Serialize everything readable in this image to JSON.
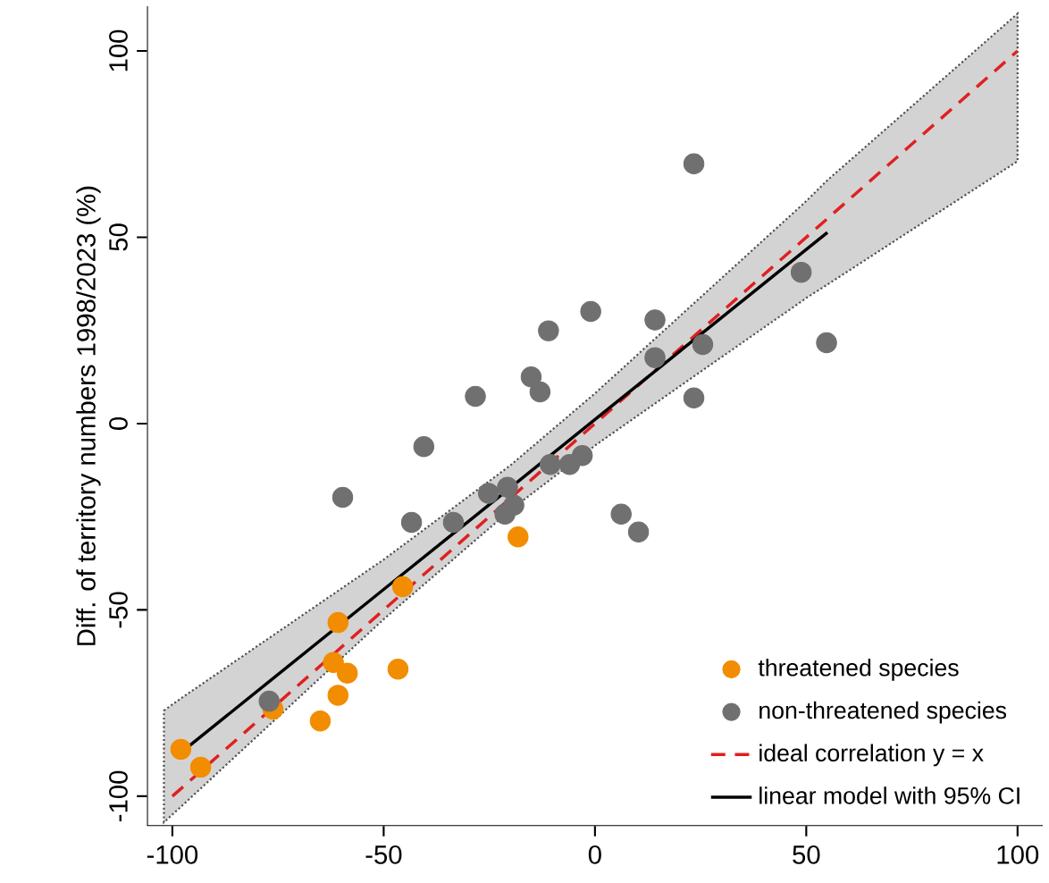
{
  "chart_data": {
    "type": "scatter",
    "ylabel": "Diff. of territory numbers 1998/2023 (%)",
    "xlim": [
      -106,
      106
    ],
    "ylim": [
      -108,
      112
    ],
    "xticks": [
      -100,
      -50,
      0,
      50,
      100
    ],
    "yticks": [
      -100,
      -50,
      0,
      50,
      100
    ],
    "legend": "bottom right",
    "series": [
      {
        "name": "threatened species",
        "color": "#f28c00",
        "x": [
          -98,
          -93.3,
          -76.2,
          -60.8,
          -61.9,
          -58.6,
          -60.8,
          -65.0,
          -45.5,
          -46.6,
          -18.2
        ],
        "values": [
          -87.4,
          -92.2,
          -76.6,
          -53.4,
          -64.1,
          -67.0,
          -72.9,
          -79.8,
          -43.8,
          -65.9,
          -30.4
        ]
      },
      {
        "name": "non-threatened species",
        "color": "#707070",
        "x": [
          -77.1,
          -59.7,
          -40.5,
          -43.4,
          -33.5,
          -28.3,
          -25.2,
          -20.7,
          -21.3,
          -19.2,
          -15.1,
          -13.0,
          -11.0,
          -1.0,
          -10.6,
          -6.0,
          -3.0,
          6.2,
          10.3,
          14.2,
          14.2,
          23.4,
          48.8,
          54.8,
          25.5,
          23.4
        ],
        "values": [
          -74.5,
          -19.8,
          -6.2,
          -26.5,
          -26.5,
          7.3,
          -18.7,
          -17.1,
          -24.3,
          -21.9,
          12.5,
          8.5,
          24.9,
          30.1,
          -11.0,
          -11.0,
          -8.6,
          -24.3,
          -29.1,
          27.8,
          17.7,
          69.7,
          40.6,
          21.7,
          21.2,
          6.9
        ]
      },
      {
        "name": "ideal correlation y = x",
        "type": "line",
        "line_style": "dashed",
        "color": "#e02020",
        "x": [
          -100,
          100
        ],
        "values": [
          -100,
          100
        ]
      },
      {
        "name": "linear model with 95% CI",
        "type": "line",
        "line_style": "solid",
        "color": "#000000",
        "x": [
          -102,
          -97,
          -50,
          -20,
          0,
          50,
          55,
          100
        ],
        "values": [
          null,
          -87.4,
          -44.5,
          -17.2,
          1.1,
          46.7,
          51.3,
          null
        ],
        "lower": [
          -107.0,
          -101.8,
          -52.5,
          -23.2,
          -5.9,
          33.7,
          37.3,
          70.4
        ],
        "upper": [
          -77.0,
          -73.0,
          -36.5,
          -11.2,
          8.1,
          59.7,
          65.3,
          110
        ]
      }
    ]
  }
}
